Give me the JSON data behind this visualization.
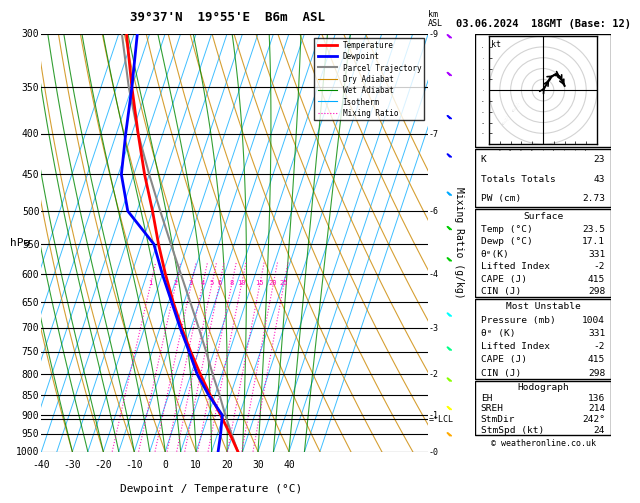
{
  "title_left": "39°37'N  19°55'E  B6m  ASL",
  "title_right": "03.06.2024  18GMT (Base: 12)",
  "xlabel": "Dewpoint / Temperature (°C)",
  "pressure_levels": [
    300,
    350,
    400,
    450,
    500,
    550,
    600,
    650,
    700,
    750,
    800,
    850,
    900,
    950,
    1000
  ],
  "temp_min": -40,
  "temp_max": 40,
  "pressure_min": 300,
  "pressure_max": 1000,
  "legend_items": [
    {
      "label": "Temperature",
      "color": "#ff0000",
      "lw": 2,
      "ls": "-"
    },
    {
      "label": "Dewpoint",
      "color": "#0000ff",
      "lw": 2,
      "ls": "-"
    },
    {
      "label": "Parcel Trajectory",
      "color": "#888888",
      "lw": 1.5,
      "ls": "-"
    },
    {
      "label": "Dry Adiabat",
      "color": "#cc8800",
      "lw": 0.8,
      "ls": "-"
    },
    {
      "label": "Wet Adiabat",
      "color": "#008800",
      "lw": 0.8,
      "ls": "-"
    },
    {
      "label": "Isotherm",
      "color": "#00aaff",
      "lw": 0.8,
      "ls": "-"
    },
    {
      "label": "Mixing Ratio",
      "color": "#ff00bb",
      "lw": 0.8,
      "ls": ":"
    }
  ],
  "stats": {
    "K": 23,
    "Totals_Totals": 43,
    "PW_cm": 2.73,
    "Surface_Temp": 23.5,
    "Surface_Dewp": 17.1,
    "Surface_ThetaE": 331,
    "Surface_LiftedIndex": -2,
    "Surface_CAPE": 415,
    "Surface_CIN": 298,
    "MU_Pressure": 1004,
    "MU_ThetaE": 331,
    "MU_LiftedIndex": -2,
    "MU_CAPE": 415,
    "MU_CIN": 298,
    "Hodo_EH": 136,
    "Hodo_SREH": 214,
    "Hodo_StmDir": 242,
    "Hodo_StmSpd": 24
  },
  "temperature_data": {
    "pressure": [
      1000,
      950,
      900,
      850,
      800,
      750,
      700,
      650,
      600,
      550,
      500,
      450,
      400,
      350,
      300
    ],
    "temp": [
      23.5,
      19.0,
      14.0,
      8.5,
      3.0,
      -2.5,
      -8.0,
      -13.5,
      -19.0,
      -24.5,
      -30.0,
      -36.5,
      -43.0,
      -50.0,
      -57.5
    ]
  },
  "dewpoint_data": {
    "pressure": [
      1000,
      950,
      900,
      850,
      800,
      750,
      700,
      650,
      600,
      550,
      500,
      450,
      400,
      350,
      300
    ],
    "dewp": [
      17.1,
      16.0,
      14.5,
      8.0,
      2.0,
      -3.0,
      -8.5,
      -14.0,
      -20.0,
      -26.0,
      -38.0,
      -44.0,
      -47.0,
      -50.0,
      -54.0
    ]
  },
  "parcel_data": {
    "pressure": [
      1000,
      950,
      900,
      850,
      800,
      750,
      700,
      650,
      600,
      550,
      500,
      450,
      400,
      350,
      300
    ],
    "temp": [
      23.5,
      19.5,
      15.5,
      11.5,
      7.0,
      2.5,
      -2.5,
      -8.0,
      -14.0,
      -20.5,
      -27.5,
      -35.0,
      -43.0,
      -51.0,
      -59.0
    ]
  },
  "mixing_ratio_lines": [
    1,
    2,
    3,
    4,
    5,
    6,
    8,
    10,
    15,
    20,
    25
  ],
  "lcl_pressure": 910,
  "km_ticks": {
    "pressure": [
      1000,
      900,
      800,
      700,
      600,
      500,
      400,
      300
    ],
    "km": [
      0,
      1,
      2,
      3,
      4,
      6,
      7,
      9
    ]
  },
  "hodo_u": [
    0,
    3,
    7,
    12,
    16,
    18,
    20
  ],
  "hodo_v": [
    0,
    5,
    12,
    15,
    12,
    8,
    4
  ],
  "barb_colors": [
    "#aa00ff",
    "#aa00ff",
    "#0000ff",
    "#0000ff",
    "#00aaff",
    "#00cc00",
    "#00cc00",
    "#00ffff",
    "#00ff88",
    "#88ff00",
    "#ffff00",
    "#ffaa00"
  ],
  "barb_pressures": [
    305,
    340,
    385,
    430,
    480,
    530,
    580,
    680,
    750,
    820,
    890,
    960
  ]
}
